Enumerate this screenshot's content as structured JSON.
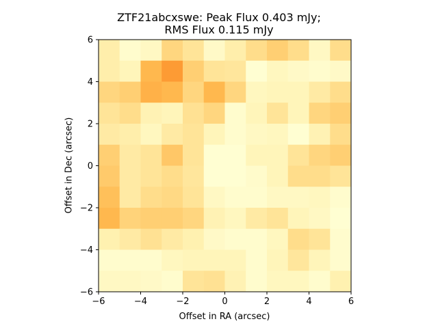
{
  "chart_data": {
    "type": "heatmap",
    "title_line1": "ZTF21abcxswe: Peak Flux 0.403 mJy;",
    "title_line2": "RMS Flux 0.115 mJy",
    "xlabel": "Offset in RA (arcsec)",
    "ylabel": "Offset in Dec (arcsec)",
    "xlim": [
      -6,
      6
    ],
    "ylim": [
      -6,
      6
    ],
    "xticks": [
      -6,
      -4,
      -2,
      0,
      2,
      4,
      6
    ],
    "yticks": [
      -6,
      -4,
      -2,
      0,
      2,
      4,
      6
    ],
    "xtick_labels": [
      "−6",
      "−4",
      "−2",
      "0",
      "2",
      "4",
      "6"
    ],
    "ytick_labels": [
      "−6",
      "−4",
      "−2",
      "0",
      "2",
      "4",
      "6"
    ],
    "colormap": "YlOrBr-like (light yellow = low, orange = high)",
    "grid": false,
    "rows_top_to_bottom": [
      [
        0.22,
        0.05,
        0.1,
        0.4,
        0.3,
        0.08,
        0.22,
        0.35,
        0.45,
        0.35,
        0.1,
        0.35
      ],
      [
        0.22,
        0.15,
        0.6,
        0.8,
        0.45,
        0.3,
        0.28,
        0.02,
        0.12,
        0.08,
        0.05,
        0.08
      ],
      [
        0.4,
        0.45,
        0.65,
        0.6,
        0.4,
        0.6,
        0.4,
        0.12,
        0.15,
        0.15,
        0.25,
        0.35
      ],
      [
        0.3,
        0.35,
        0.18,
        0.15,
        0.32,
        0.4,
        0.05,
        0.15,
        0.3,
        0.15,
        0.4,
        0.45
      ],
      [
        0.25,
        0.22,
        0.12,
        0.25,
        0.3,
        0.15,
        0.05,
        0.1,
        0.12,
        0.02,
        0.18,
        0.35
      ],
      [
        0.45,
        0.25,
        0.3,
        0.5,
        0.3,
        0.02,
        0.02,
        0.15,
        0.15,
        0.3,
        0.4,
        0.45
      ],
      [
        0.48,
        0.25,
        0.3,
        0.35,
        0.28,
        0.02,
        0.02,
        0.06,
        0.15,
        0.35,
        0.35,
        0.3
      ],
      [
        0.55,
        0.25,
        0.35,
        0.38,
        0.3,
        0.1,
        0.05,
        0.05,
        0.1,
        0.1,
        0.12,
        0.05
      ],
      [
        0.6,
        0.42,
        0.45,
        0.45,
        0.4,
        0.18,
        0.12,
        0.25,
        0.3,
        0.15,
        0.1,
        0.02
      ],
      [
        0.2,
        0.25,
        0.32,
        0.25,
        0.2,
        0.08,
        0.05,
        0.05,
        0.12,
        0.35,
        0.3,
        0.05
      ],
      [
        0.05,
        0.05,
        0.05,
        0.12,
        0.15,
        0.15,
        0.15,
        0.05,
        0.15,
        0.28,
        0.15,
        0.05
      ],
      [
        0.1,
        0.1,
        0.08,
        0.05,
        0.3,
        0.32,
        0.18,
        0.05,
        0.12,
        0.12,
        0.05,
        0.2
      ]
    ]
  }
}
